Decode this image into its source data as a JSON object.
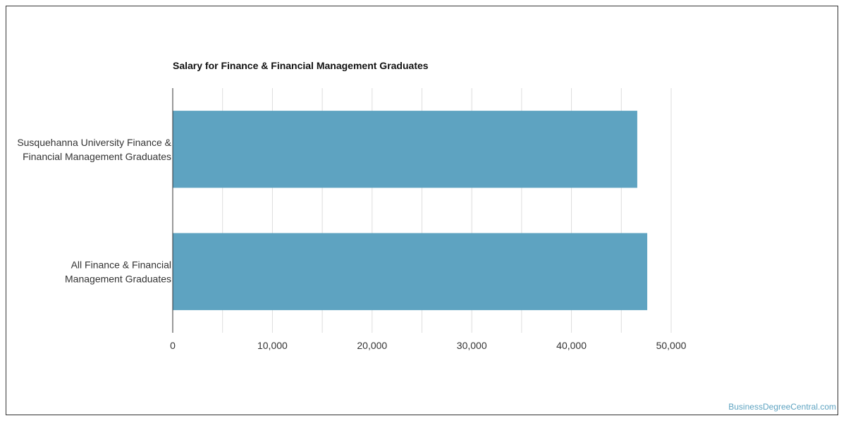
{
  "chart_data": {
    "type": "bar",
    "orientation": "horizontal",
    "title": "Salary for Finance & Financial Management Graduates",
    "categories": [
      [
        "Susquehanna University Finance &",
        "Financial Management Graduates"
      ],
      [
        "All Finance & Financial",
        "Management Graduates"
      ]
    ],
    "values": [
      46600,
      47600
    ],
    "xlim": [
      0,
      50000
    ],
    "xticks": [
      0,
      10000,
      20000,
      30000,
      40000,
      50000
    ],
    "xtick_labels": [
      "0",
      "10,000",
      "20,000",
      "30,000",
      "40,000",
      "50,000"
    ],
    "xlabel": "",
    "ylabel": "",
    "grid": true,
    "bar_color": "#5ea3c1",
    "grid_color": "#dddddd"
  },
  "credit": "BusinessDegreeCentral.com"
}
